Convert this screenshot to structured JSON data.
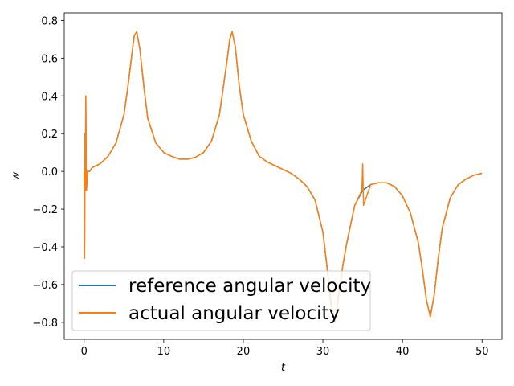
{
  "chart_data": {
    "type": "line",
    "title": "",
    "xlabel": "t",
    "ylabel": "w",
    "xlim": [
      -2.5,
      52.5
    ],
    "ylim": [
      -0.89,
      0.84
    ],
    "xticks": [
      0,
      10,
      20,
      30,
      40,
      50
    ],
    "yticks": [
      -0.8,
      -0.6,
      -0.4,
      -0.2,
      0.0,
      0.2,
      0.4,
      0.6,
      0.8
    ],
    "xtick_labels": [
      "0",
      "10",
      "20",
      "30",
      "40",
      "50"
    ],
    "ytick_labels": [
      "−0.8",
      "−0.6",
      "−0.4",
      "−0.2",
      "0.0",
      "0.2",
      "0.4",
      "0.6",
      "0.8"
    ],
    "grid": false,
    "legend_position": "lower-left",
    "series": [
      {
        "name": "reference angular velocity",
        "color": "#1f77b4",
        "x": [
          0,
          0.05,
          0.1,
          0.15,
          0.2,
          0.25,
          0.3,
          0.4,
          0.5,
          0.7,
          1,
          2,
          3,
          4,
          5,
          5.5,
          6,
          6.3,
          6.6,
          7,
          7.5,
          8,
          9,
          10,
          11,
          12,
          13,
          14,
          15,
          16,
          17,
          17.5,
          18,
          18.3,
          18.6,
          19,
          19.5,
          20,
          21,
          22,
          23,
          24,
          25,
          26,
          27,
          28,
          29,
          30,
          30.5,
          31,
          31.5,
          32,
          32.5,
          33,
          33.5,
          34,
          35,
          36,
          37,
          38,
          39,
          40,
          41,
          42,
          42.5,
          43,
          43.5,
          44,
          44.5,
          45,
          46,
          47,
          48,
          49,
          50
        ],
        "values": [
          0.0,
          -0.46,
          0.2,
          -0.1,
          0.4,
          0.0,
          -0.1,
          0.0,
          0.0,
          0.0,
          0.02,
          0.04,
          0.08,
          0.15,
          0.3,
          0.45,
          0.62,
          0.72,
          0.74,
          0.65,
          0.45,
          0.28,
          0.15,
          0.1,
          0.08,
          0.065,
          0.065,
          0.075,
          0.1,
          0.16,
          0.3,
          0.45,
          0.6,
          0.7,
          0.74,
          0.66,
          0.45,
          0.3,
          0.16,
          0.08,
          0.05,
          0.03,
          0.01,
          -0.01,
          -0.04,
          -0.08,
          -0.15,
          -0.32,
          -0.5,
          -0.7,
          -0.8,
          -0.65,
          -0.5,
          -0.38,
          -0.28,
          -0.18,
          -0.1,
          -0.07,
          -0.06,
          -0.06,
          -0.08,
          -0.13,
          -0.22,
          -0.38,
          -0.52,
          -0.68,
          -0.77,
          -0.65,
          -0.46,
          -0.3,
          -0.14,
          -0.07,
          -0.04,
          -0.02,
          -0.01
        ]
      },
      {
        "name": "actual angular velocity",
        "color": "#ff7f0e",
        "x": [
          0,
          0.05,
          0.1,
          0.15,
          0.2,
          0.25,
          0.3,
          0.4,
          0.5,
          0.7,
          1,
          2,
          3,
          4,
          5,
          5.5,
          6,
          6.3,
          6.6,
          7,
          7.5,
          8,
          9,
          10,
          11,
          12,
          13,
          14,
          15,
          16,
          17,
          17.5,
          18,
          18.3,
          18.6,
          19,
          19.5,
          20,
          21,
          22,
          23,
          24,
          25,
          26,
          27,
          28,
          29,
          30,
          30.5,
          31,
          31.5,
          32,
          32.5,
          33,
          33.5,
          34,
          34.9,
          35.0,
          35.1,
          36,
          37,
          38,
          39,
          40,
          41,
          42,
          42.5,
          43,
          43.5,
          44,
          44.5,
          45,
          46,
          47,
          48,
          49,
          50
        ],
        "values": [
          0.0,
          -0.46,
          0.2,
          -0.1,
          0.4,
          0.0,
          -0.1,
          0.0,
          0.0,
          0.0,
          0.02,
          0.04,
          0.08,
          0.15,
          0.3,
          0.45,
          0.62,
          0.72,
          0.74,
          0.65,
          0.45,
          0.28,
          0.15,
          0.1,
          0.08,
          0.065,
          0.065,
          0.075,
          0.1,
          0.16,
          0.3,
          0.45,
          0.6,
          0.7,
          0.74,
          0.66,
          0.45,
          0.3,
          0.16,
          0.08,
          0.05,
          0.03,
          0.01,
          -0.01,
          -0.04,
          -0.08,
          -0.15,
          -0.32,
          -0.5,
          -0.7,
          -0.8,
          -0.65,
          -0.5,
          -0.38,
          -0.28,
          -0.18,
          -0.1,
          0.04,
          -0.18,
          -0.07,
          -0.06,
          -0.06,
          -0.08,
          -0.13,
          -0.22,
          -0.38,
          -0.52,
          -0.68,
          -0.77,
          -0.65,
          -0.46,
          -0.3,
          -0.14,
          -0.07,
          -0.04,
          -0.02,
          -0.01
        ]
      }
    ]
  }
}
